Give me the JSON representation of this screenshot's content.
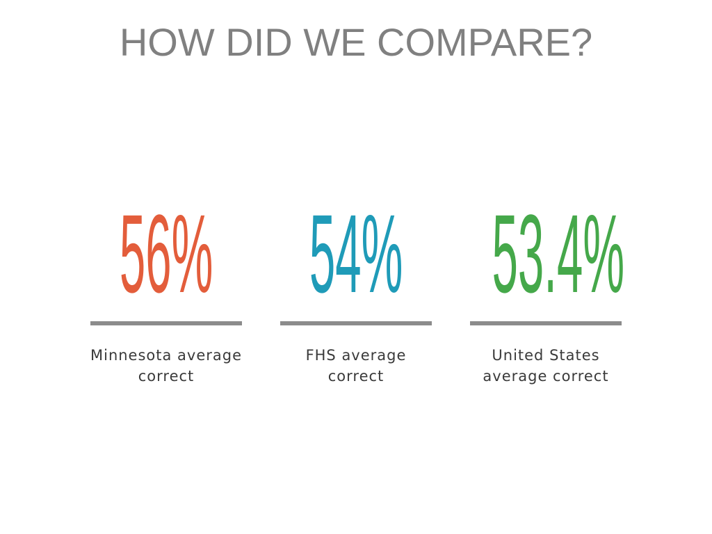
{
  "title": "HOW DID WE COMPARE?",
  "stats": [
    {
      "value": "56%",
      "label_lines": [
        "Minnesota average",
        "correct"
      ],
      "color": "#e35d3b"
    },
    {
      "value": "54%",
      "label_lines": [
        "FHS average",
        "correct"
      ],
      "color": "#1f9bb8"
    },
    {
      "value": "53.4%",
      "label_lines": [
        "United States",
        "average correct"
      ],
      "color": "#45a84a"
    }
  ]
}
